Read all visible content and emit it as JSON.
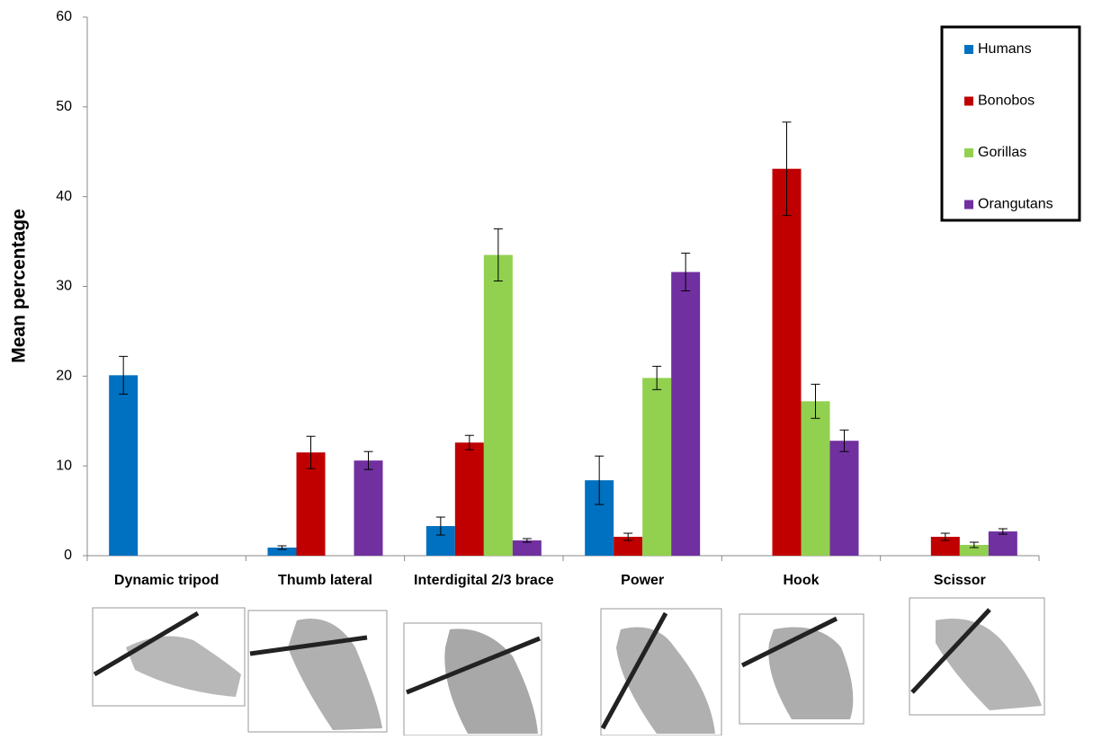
{
  "chart_data": {
    "type": "bar",
    "y_label": "Mean percentage",
    "categories": [
      "Dynamic tripod",
      "Thumb lateral",
      "Interdigital 2/3 brace",
      "Power",
      "Hook",
      "Scissor"
    ],
    "series": [
      {
        "name": "Humans",
        "color": "#0070c0",
        "values": [
          20.1,
          0.9,
          3.3,
          8.4,
          null,
          null
        ],
        "errors": [
          2.1,
          0.2,
          1.0,
          2.7,
          null,
          null
        ]
      },
      {
        "name": "Bonobos",
        "color": "#c00000",
        "values": [
          null,
          11.5,
          12.6,
          2.1,
          43.1,
          2.1
        ],
        "errors": [
          null,
          1.8,
          0.8,
          0.4,
          5.2,
          0.4
        ]
      },
      {
        "name": "Gorillas",
        "color": "#92d050",
        "values": [
          null,
          null,
          33.5,
          19.8,
          17.2,
          1.2
        ],
        "errors": [
          null,
          null,
          2.9,
          1.3,
          1.9,
          0.3
        ]
      },
      {
        "name": "Orangutans",
        "color": "#7030a0",
        "values": [
          null,
          10.6,
          1.7,
          31.6,
          12.8,
          2.7
        ],
        "errors": [
          null,
          1.0,
          0.2,
          2.1,
          1.2,
          0.3
        ]
      }
    ],
    "ylim": [
      0,
      60
    ],
    "yticks": [
      0,
      10,
      20,
      30,
      40,
      50,
      60
    ],
    "grid": false,
    "legend": "top-right"
  }
}
